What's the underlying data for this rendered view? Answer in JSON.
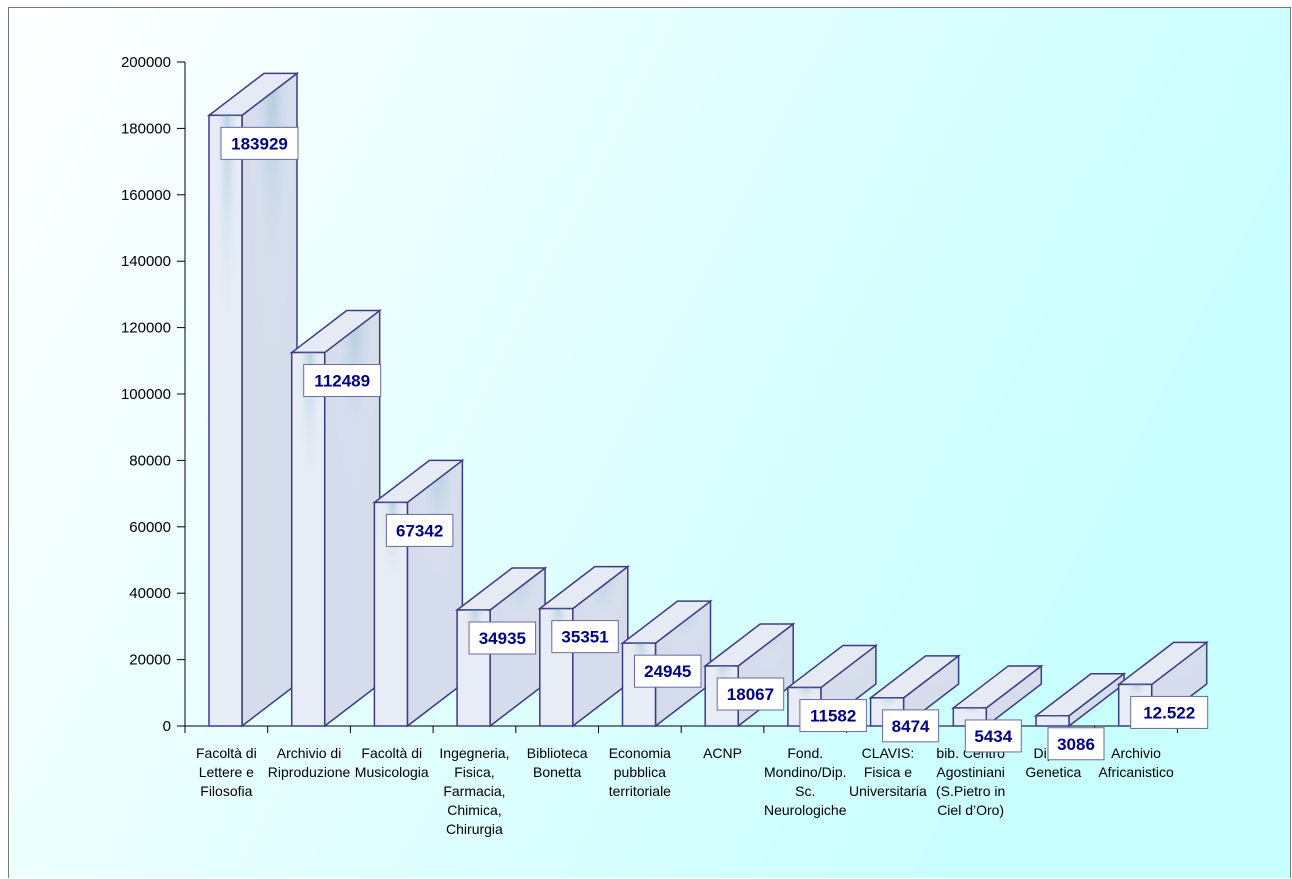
{
  "chart_data": {
    "type": "bar",
    "title": "",
    "xlabel": "",
    "ylabel": "",
    "ylim": [
      0,
      200000
    ],
    "yticks": [
      "0",
      "20000",
      "40000",
      "60000",
      "80000",
      "100000",
      "120000",
      "140000",
      "160000",
      "180000",
      "200000"
    ],
    "grid": false,
    "legend": "none",
    "categories": [
      [
        "Facoltà di",
        "Lettere e",
        "Filosofia"
      ],
      [
        "Archivio di",
        "Riproduzione"
      ],
      [
        "Facoltà di",
        "Musicologia"
      ],
      [
        "Ingegneria,",
        "Fisica,",
        "Farmacia,",
        "Chimica,",
        "Chirurgia"
      ],
      [
        "Biblioteca",
        "Bonetta"
      ],
      [
        "Economia",
        "pubblica",
        "territoriale"
      ],
      [
        "ACNP"
      ],
      [
        "Fond.",
        "Mondino/Dip.",
        "Sc.",
        "Neurologiche"
      ],
      [
        "CLAVIS:",
        "Fisica e",
        "Universitaria"
      ],
      [
        "bib. Centro",
        "Agostiniani",
        "(S.Pietro in",
        "Ciel d’Oro)"
      ],
      [
        "Dip. di",
        "Genetica"
      ],
      [
        "Archivio",
        "Africanistico"
      ]
    ],
    "values": [
      183929,
      112489,
      67342,
      34935,
      35351,
      24945,
      18067,
      11582,
      8474,
      5434,
      3086,
      12522
    ],
    "data_labels": [
      "183929",
      "112489",
      "67342",
      "34935",
      "35351",
      "24945",
      "18067",
      "11582",
      "8474",
      "5434",
      "3086",
      "12.522"
    ],
    "colors": {
      "bar_front": "#e8ecf6",
      "bar_side": "#d5dcec",
      "bar_top": "#e6eaf4",
      "bar_stroke": "#3c3c82",
      "label_text": "#000080",
      "bg_gradient_start": "#ffffff",
      "bg_gradient_end": "#c8ffff"
    }
  }
}
